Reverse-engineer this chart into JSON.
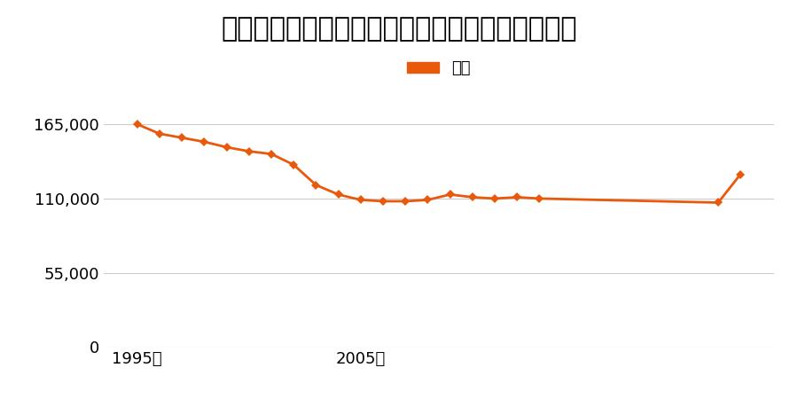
{
  "title": "愛知県名古屋市南区白水町３６番２５の地価推移",
  "legend_label": "価格",
  "line_color": "#e8590c",
  "marker_color": "#e8590c",
  "background_color": "#ffffff",
  "years": [
    1995,
    1996,
    1997,
    1998,
    1999,
    2000,
    2001,
    2002,
    2003,
    2004,
    2005,
    2006,
    2007,
    2008,
    2009,
    2010,
    2011,
    2012,
    2013,
    2021,
    2022
  ],
  "values": [
    165000,
    158000,
    155000,
    152000,
    148000,
    145000,
    143000,
    135000,
    120000,
    113000,
    109000,
    108000,
    108000,
    109000,
    113000,
    111000,
    110000,
    111000,
    110000,
    107000,
    128000
  ],
  "ylim": [
    0,
    192000
  ],
  "yticks": [
    0,
    55000,
    110000,
    165000
  ],
  "xtick_labels": [
    "1995年",
    "2005年"
  ],
  "xtick_positions": [
    1995,
    2005
  ],
  "title_fontsize": 22,
  "legend_fontsize": 13,
  "tick_fontsize": 13,
  "grid_color": "#cccccc",
  "marker_size": 5
}
